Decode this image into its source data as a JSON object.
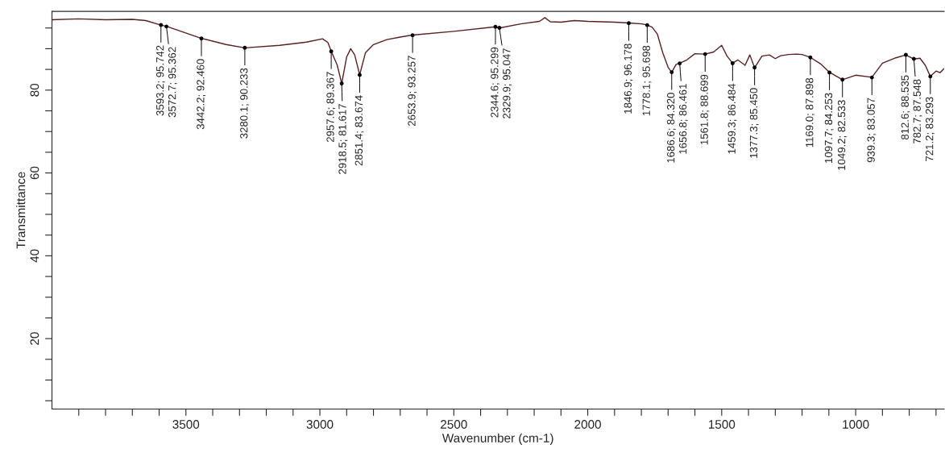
{
  "chart_data": {
    "type": "line",
    "xlabel": "Wavenumber (cm-1)",
    "ylabel": "Transmittance",
    "series": [
      {
        "color": "#5a2020",
        "x": [
          4000,
          3900,
          3800,
          3700,
          3650,
          3593.2,
          3572.7,
          3442.2,
          3350,
          3280.1,
          3150,
          3050,
          2990,
          2970,
          2957.6,
          2935,
          2918.5,
          2900,
          2885,
          2870,
          2851.4,
          2830,
          2800,
          2750,
          2700,
          2653.9,
          2500,
          2344.6,
          2329.9,
          2250,
          2180,
          2160,
          2140,
          2100,
          2050,
          2000,
          1950,
          1900,
          1846.9,
          1798,
          1778.1,
          1760,
          1740,
          1720,
          1700,
          1686.6,
          1670,
          1656.8,
          1630,
          1600,
          1561.8,
          1530,
          1500,
          1480,
          1459.3,
          1440,
          1412.7,
          1395,
          1377.3,
          1350,
          1322,
          1300,
          1280,
          1250,
          1220,
          1200,
          1169,
          1130,
          1097.7,
          1049.2,
          1000,
          939.3,
          900,
          850,
          812.6,
          782.7,
          760,
          740,
          721.2,
          700,
          685,
          670
        ],
        "values": [
          97,
          97.2,
          97,
          97.1,
          96.8,
          95.7,
          95.4,
          92.5,
          91,
          90.2,
          90.8,
          91.6,
          92.4,
          91.5,
          89.4,
          86,
          81.6,
          88,
          90,
          88.5,
          83.7,
          89,
          91,
          92.2,
          92.8,
          93.3,
          94.2,
          95.3,
          95.0,
          96.0,
          96.6,
          97.5,
          96.5,
          96.4,
          96.8,
          96.6,
          96.5,
          96.4,
          96.2,
          96.0,
          95.7,
          95.2,
          93.5,
          89,
          85.5,
          84.3,
          86.2,
          86.5,
          87.3,
          88.8,
          88.7,
          89.2,
          90.8,
          88.2,
          86.5,
          87.3,
          86.0,
          88.5,
          85.4,
          88.2,
          88.5,
          87.6,
          88.3,
          88.6,
          88.7,
          88.6,
          87.9,
          86.3,
          84.3,
          82.5,
          83.6,
          83.1,
          86.5,
          87.8,
          88.5,
          87.5,
          87.7,
          86,
          83.3,
          84.6,
          84.2,
          85.2
        ]
      }
    ],
    "xlim": [
      4000,
      670
    ],
    "ylim": [
      3,
      99
    ],
    "xticks": [
      {
        "value": 3900,
        "label": null
      },
      {
        "value": 3800,
        "label": null
      },
      {
        "value": 3700,
        "label": null
      },
      {
        "value": 3600,
        "label": null
      },
      3500,
      {
        "value": 3400,
        "label": null
      },
      {
        "value": 3300,
        "label": null
      },
      {
        "value": 3200,
        "label": null
      },
      {
        "value": 3100,
        "label": null
      },
      3000,
      {
        "value": 2900,
        "label": null
      },
      {
        "value": 2800,
        "label": null
      },
      {
        "value": 2700,
        "label": null
      },
      {
        "value": 2600,
        "label": null
      },
      2500,
      {
        "value": 2400,
        "label": null
      },
      {
        "value": 2300,
        "label": null
      },
      {
        "value": 2200,
        "label": null
      },
      {
        "value": 2100,
        "label": null
      },
      2000,
      {
        "value": 1900,
        "label": null
      },
      {
        "value": 1800,
        "label": null
      },
      {
        "value": 1700,
        "label": null
      },
      {
        "value": 1600,
        "label": null
      },
      1500,
      {
        "value": 1400,
        "label": null
      },
      {
        "value": 1300,
        "label": null
      },
      {
        "value": 1200,
        "label": null
      },
      {
        "value": 1100,
        "label": null
      },
      1000,
      {
        "value": 900,
        "label": null
      },
      {
        "value": 800,
        "label": null
      },
      {
        "value": 700,
        "label": null
      }
    ],
    "yticks": [
      {
        "value": 5,
        "label": null
      },
      {
        "value": 10,
        "label": null
      },
      {
        "value": 15,
        "label": null
      },
      20,
      {
        "value": 25,
        "label": null
      },
      {
        "value": 30,
        "label": null
      },
      {
        "value": 35,
        "label": null
      },
      40,
      {
        "value": 45,
        "label": null
      },
      {
        "value": 50,
        "label": null
      },
      {
        "value": 55,
        "label": null
      },
      60,
      {
        "value": 65,
        "label": null
      },
      {
        "value": 70,
        "label": null
      },
      {
        "value": 75,
        "label": null
      },
      80,
      {
        "value": 85,
        "label": null
      },
      {
        "value": 90,
        "label": null
      },
      {
        "value": 95,
        "label": null
      }
    ],
    "grid": false,
    "marker": "none",
    "line_style": "solid",
    "annotations": [
      {
        "text": "3593.2; 95.742",
        "x": 3593.2,
        "y": 95.742
      },
      {
        "text": "3572.7; 95.362",
        "x": 3572.7,
        "y": 95.362
      },
      {
        "text": "3442.2; 92.460",
        "x": 3442.2,
        "y": 92.46
      },
      {
        "text": "3280.1; 90.233",
        "x": 3280.1,
        "y": 90.233
      },
      {
        "text": "2957.6; 89.367",
        "x": 2957.6,
        "y": 89.367
      },
      {
        "text": "2918.5; 81.617",
        "x": 2918.5,
        "y": 81.617
      },
      {
        "text": "2851.4; 83.674",
        "x": 2851.4,
        "y": 83.674
      },
      {
        "text": "2653.9; 93.257",
        "x": 2653.9,
        "y": 93.257
      },
      {
        "text": "2344.6; 95.299",
        "x": 2344.6,
        "y": 95.299
      },
      {
        "text": "2329.9; 95.047",
        "x": 2329.9,
        "y": 95.047
      },
      {
        "text": "1846.9; 96.178",
        "x": 1846.9,
        "y": 96.178
      },
      {
        "text": "1778.1; 95.698",
        "x": 1778.1,
        "y": 95.698
      },
      {
        "text": "1686.6; 84.320",
        "x": 1686.6,
        "y": 84.32
      },
      {
        "text": "1656.8; 86.461",
        "x": 1656.8,
        "y": 86.461
      },
      {
        "text": "1561.8; 88.699",
        "x": 1561.8,
        "y": 88.699
      },
      {
        "text": "1459.3; 86.484",
        "x": 1459.3,
        "y": 86.484
      },
      {
        "text": "1377.3; 85.450",
        "x": 1377.3,
        "y": 85.45
      },
      {
        "text": "1169.0; 87.898",
        "x": 1169.0,
        "y": 87.898
      },
      {
        "text": "1097.7; 84.253",
        "x": 1097.7,
        "y": 84.253
      },
      {
        "text": "1049.2; 82.533",
        "x": 1049.2,
        "y": 82.533
      },
      {
        "text": "939.3; 83.057",
        "x": 939.3,
        "y": 83.057
      },
      {
        "text": "812.6; 88.535",
        "x": 812.6,
        "y": 88.535
      },
      {
        "text": "782.7; 87.548",
        "x": 782.7,
        "y": 87.548
      },
      {
        "text": "721.2; 83.293",
        "x": 721.2,
        "y": 83.293
      }
    ]
  }
}
